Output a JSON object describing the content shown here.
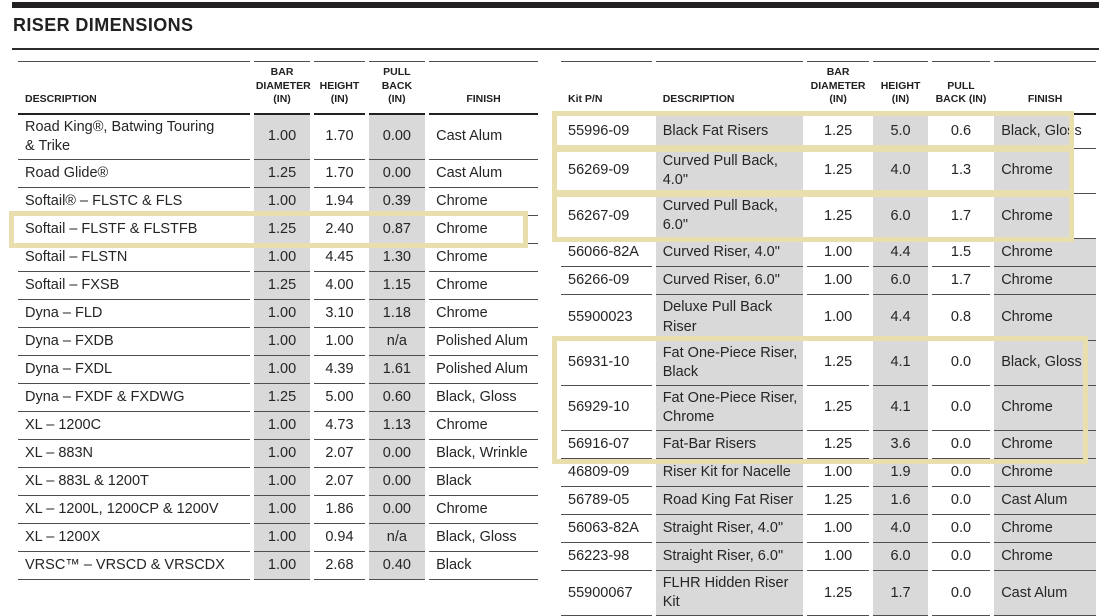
{
  "page": {
    "title": "RISER DIMENSIONS"
  },
  "colors": {
    "highlight_box": "#e9dead",
    "shade_gray": "#d9d9d9",
    "rule_dark": "#232021",
    "row_line": "#4f4f51",
    "text": "#272425"
  },
  "left_table": {
    "columns": [
      "DESCRIPTION",
      "BAR\nDIAMETER\n(IN)",
      "HEIGHT\n(IN)",
      "PULL BACK\n(IN)",
      "FINISH"
    ],
    "rows": [
      [
        "Road King®, Batwing Touring\n& Trike",
        "1.00",
        "1.70",
        "0.00",
        "Cast Alum"
      ],
      [
        "Road Glide®",
        "1.25",
        "1.70",
        "0.00",
        "Cast Alum"
      ],
      [
        "Softail® – FLSTC & FLS",
        "1.00",
        "1.94",
        "0.39",
        "Chrome"
      ],
      [
        "Softail – FLSTF & FLSTFB",
        "1.25",
        "2.40",
        "0.87",
        "Chrome"
      ],
      [
        "Softail – FLSTN",
        "1.00",
        "4.45",
        "1.30",
        "Chrome"
      ],
      [
        "Softail – FXSB",
        "1.25",
        "4.00",
        "1.15",
        "Chrome"
      ],
      [
        "Dyna – FLD",
        "1.00",
        "3.10",
        "1.18",
        "Chrome"
      ],
      [
        "Dyna – FXDB",
        "1.00",
        "1.00",
        "n/a",
        "Polished Alum"
      ],
      [
        "Dyna – FXDL",
        "1.00",
        "4.39",
        "1.61",
        "Polished Alum"
      ],
      [
        "Dyna – FXDF & FXDWG",
        "1.25",
        "5.00",
        "0.60",
        "Black, Gloss"
      ],
      [
        "XL – 1200C",
        "1.00",
        "4.73",
        "1.13",
        "Chrome"
      ],
      [
        "XL – 883N",
        "1.00",
        "2.07",
        "0.00",
        "Black, Wrinkle"
      ],
      [
        "XL – 883L & 1200T",
        "1.00",
        "2.07",
        "0.00",
        "Black"
      ],
      [
        "XL – 1200L, 1200CP & 1200V",
        "1.00",
        "1.86",
        "0.00",
        "Chrome"
      ],
      [
        "XL – 1200X",
        "1.00",
        "0.94",
        "n/a",
        "Black, Gloss"
      ],
      [
        "VRSC™ – VRSCD & VRSCDX",
        "1.00",
        "2.68",
        "0.40",
        "Black"
      ]
    ],
    "highlights": [
      {
        "from": 3,
        "to": 3,
        "style": "left-row"
      }
    ]
  },
  "right_table": {
    "columns": [
      "Kit P/N",
      "DESCRIPTION",
      "BAR\nDIAMETER\n(IN)",
      "HEIGHT\n(IN)",
      "PULL\nBACK (IN)",
      "FINISH"
    ],
    "rows": [
      [
        "55996-09",
        "Black Fat Risers",
        "1.25",
        "5.0",
        "0.6",
        "Black, Gloss"
      ],
      [
        "56269-09",
        "Curved Pull Back,\n4.0\"",
        "1.25",
        "4.0",
        "1.3",
        "Chrome"
      ],
      [
        "56267-09",
        "Curved Pull Back,\n6.0\"",
        "1.25",
        "6.0",
        "1.7",
        "Chrome"
      ],
      [
        "56066-82A",
        "Curved Riser, 4.0\"",
        "1.00",
        "4.4",
        "1.5",
        "Chrome"
      ],
      [
        "56266-09",
        "Curved Riser, 6.0\"",
        "1.00",
        "6.0",
        "1.7",
        "Chrome"
      ],
      [
        "55900023",
        "Deluxe Pull Back\nRiser",
        "1.00",
        "4.4",
        "0.8",
        "Chrome"
      ],
      [
        "56931-10",
        "Fat One-Piece Riser,\nBlack",
        "1.25",
        "4.1",
        "0.0",
        "Black, Gloss"
      ],
      [
        "56929-10",
        "Fat One-Piece Riser,\nChrome",
        "1.25",
        "4.1",
        "0.0",
        "Chrome"
      ],
      [
        "56916-07",
        "Fat-Bar Risers",
        "1.25",
        "3.6",
        "0.0",
        "Chrome"
      ],
      [
        "46809-09",
        "Riser Kit for Nacelle",
        "1.00",
        "1.9",
        "0.0",
        "Chrome"
      ],
      [
        "56789-05",
        "Road King Fat Riser",
        "1.25",
        "1.6",
        "0.0",
        "Cast Alum"
      ],
      [
        "56063-82A",
        "Straight Riser, 4.0\"",
        "1.00",
        "4.0",
        "0.0",
        "Chrome"
      ],
      [
        "56223-98",
        "Straight Riser, 6.0\"",
        "1.00",
        "6.0",
        "0.0",
        "Chrome"
      ],
      [
        "55900067",
        "FLHR Hidden Riser\nKit",
        "1.25",
        "1.7",
        "0.0",
        "Cast Alum"
      ]
    ],
    "highlights": [
      {
        "from": 0,
        "to": 0,
        "style": "single"
      },
      {
        "from": 1,
        "to": 1,
        "style": "single"
      },
      {
        "from": 2,
        "to": 2,
        "style": "single"
      },
      {
        "from": 6,
        "to": 8,
        "style": "group"
      }
    ]
  }
}
